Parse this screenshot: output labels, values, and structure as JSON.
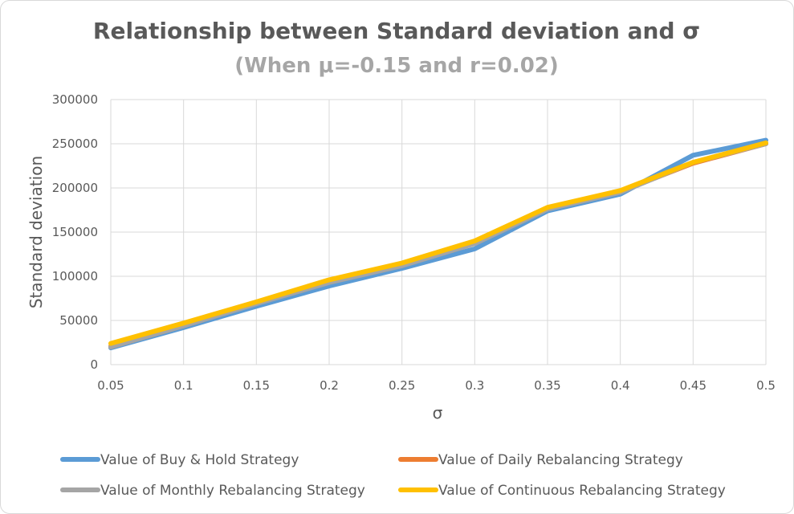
{
  "chart_data": {
    "type": "line",
    "title": "Relationship between Standard deviation and σ",
    "subtitle": "(When μ=-0.15 and r=0.02)",
    "xlabel": "σ",
    "ylabel": "Standard deviation",
    "x": [
      0.05,
      0.1,
      0.15,
      0.2,
      0.25,
      0.3,
      0.35,
      0.4,
      0.45,
      0.5
    ],
    "x_tick_labels": [
      "0.05",
      "0.1",
      "0.15",
      "0.2",
      "0.25",
      "0.3",
      "0.35",
      "0.4",
      "0.45",
      "0.5"
    ],
    "ylim": [
      0,
      300000
    ],
    "y_ticks": [
      0,
      50000,
      100000,
      150000,
      200000,
      250000,
      300000
    ],
    "y_tick_labels": [
      "0",
      "50000",
      "100000",
      "150000",
      "200000",
      "250000",
      "300000"
    ],
    "grid": true,
    "legend_position": "bottom",
    "series": [
      {
        "name": "Value of Buy & Hold Strategy",
        "color": "#5b9bd5",
        "values": [
          19000,
          42000,
          66000,
          89000,
          109000,
          131000,
          174000,
          193000,
          237000,
          254000
        ]
      },
      {
        "name": "Value of Daily Rebalancing Strategy",
        "color": "#ed7d31",
        "values": [
          21000,
          45000,
          70000,
          95000,
          113000,
          138000,
          177000,
          196000,
          228000,
          250000
        ]
      },
      {
        "name": "Value of Monthly Rebalancing Strategy",
        "color": "#a5a5a5",
        "values": [
          20000,
          44000,
          69000,
          93000,
          112000,
          137000,
          176000,
          195000,
          229000,
          250000
        ]
      },
      {
        "name": "Value of Continuous Rebalancing Strategy",
        "color": "#ffc000",
        "values": [
          24000,
          47000,
          71000,
          96000,
          115000,
          140000,
          178000,
          197000,
          229000,
          251000
        ]
      }
    ]
  }
}
